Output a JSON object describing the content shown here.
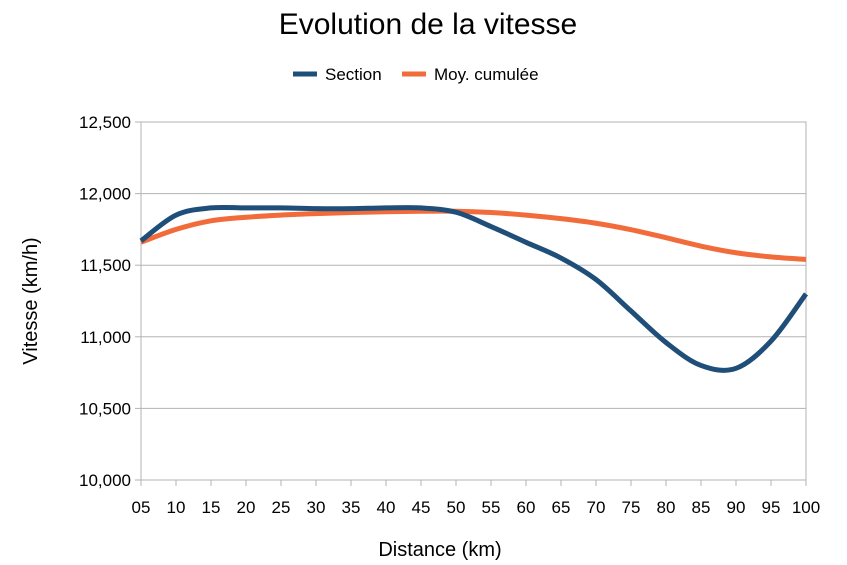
{
  "chart_data": {
    "type": "line",
    "title": "Evolution de la vitesse",
    "xlabel": "Distance (km)",
    "ylabel": "Vitesse (km/h)",
    "categories": [
      "05",
      "10",
      "15",
      "20",
      "25",
      "30",
      "35",
      "40",
      "45",
      "50",
      "55",
      "60",
      "65",
      "70",
      "75",
      "80",
      "85",
      "90",
      "95",
      "100"
    ],
    "ylim": [
      10000,
      12500
    ],
    "yticks": [
      10000,
      10500,
      11000,
      11500,
      12000,
      12500
    ],
    "ytick_labels": [
      "10,000",
      "10,500",
      "11,000",
      "11,500",
      "12,000",
      "12,500"
    ],
    "grid": true,
    "legend_position": "top",
    "series": [
      {
        "name": "Section",
        "color": "#1f4e79",
        "values": [
          11670,
          11850,
          11900,
          11900,
          11900,
          11895,
          11895,
          11900,
          11900,
          11870,
          11770,
          11660,
          11550,
          11400,
          11180,
          10960,
          10800,
          10780,
          10970,
          11300
        ]
      },
      {
        "name": "Moy. cumulée",
        "color": "#f26b3a",
        "values": [
          11660,
          11750,
          11810,
          11835,
          11850,
          11860,
          11868,
          11873,
          11877,
          11877,
          11868,
          11850,
          11825,
          11793,
          11748,
          11692,
          11633,
          11587,
          11558,
          11540
        ]
      }
    ]
  }
}
